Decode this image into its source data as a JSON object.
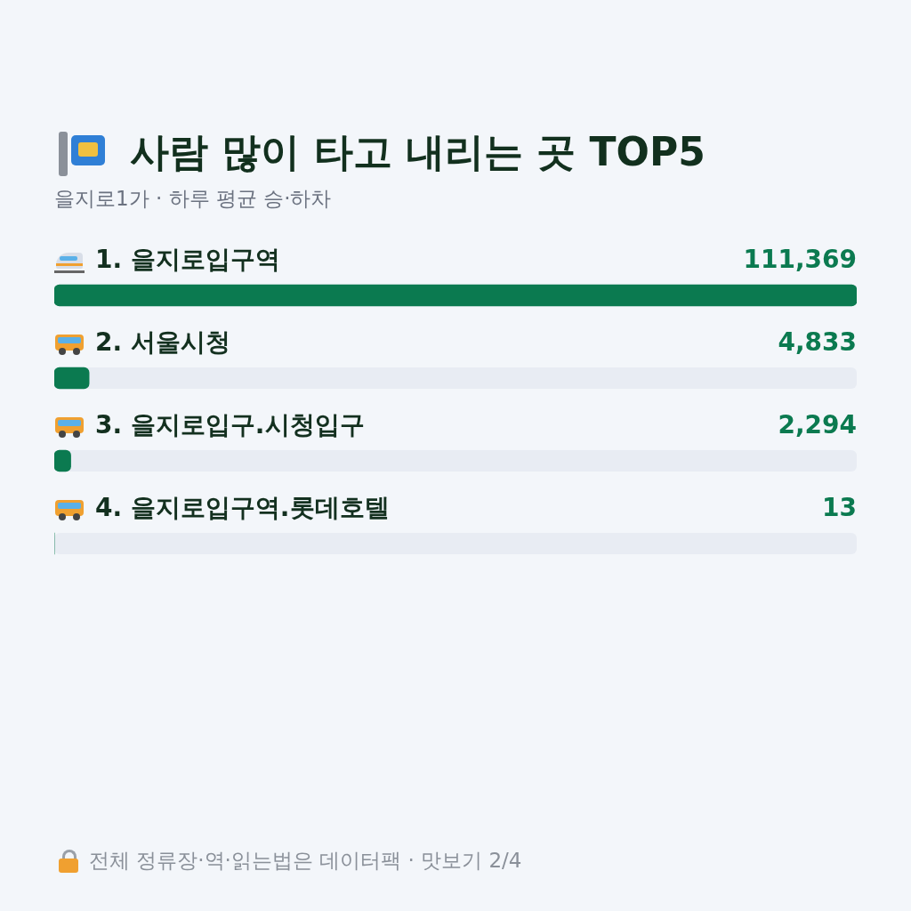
{
  "chart_data": {
    "type": "bar",
    "orientation": "horizontal",
    "title": "사람 많이 타고 내리는 곳 TOP5",
    "subtitle": "을지로1가 · 하루 평균 승·하차",
    "categories": [
      "1. 을지로입구역",
      "2. 서울시청",
      "3. 을지로입구.시청입구",
      "4. 을지로입구역.롯데호텔"
    ],
    "values": [
      111369,
      4833,
      2294,
      13
    ],
    "color": "#0b7a50",
    "value_labels": [
      "111,369",
      "4,833",
      "2,294",
      "13"
    ],
    "tick_labels": false,
    "annotations": [
      "전체 정류장·역·읽는법은 데이터팩 · 맛보기 2/4"
    ]
  }
}
